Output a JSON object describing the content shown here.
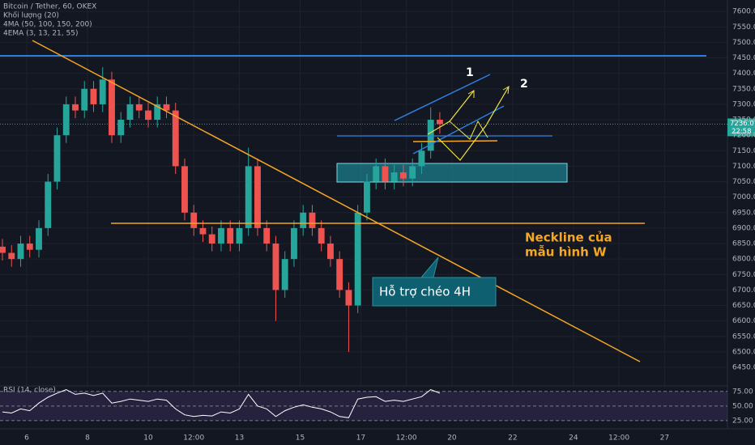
{
  "chart_data": [
    {
      "type": "candlestick",
      "title": "Bitcoin / Tether, 60, OKEX",
      "indicators": [
        "Khối lượng (20)",
        "4MA (50, 100, 150, 200)",
        "4EMA (3, 13, 21, 55)"
      ],
      "x": [
        5.2,
        5.5,
        5.8,
        6.1,
        6.4,
        6.7,
        7.0,
        7.3,
        7.6,
        7.9,
        8.2,
        8.5,
        8.8,
        9.1,
        9.4,
        9.7,
        10.0,
        10.3,
        10.6,
        10.9,
        11.2,
        11.5,
        11.8,
        12.1,
        12.4,
        12.7,
        13.0,
        13.3,
        13.6,
        13.9,
        14.2,
        14.5,
        14.8,
        15.1,
        15.4,
        15.7,
        16.0,
        16.3,
        16.6,
        16.9,
        17.2,
        17.5,
        17.8,
        18.1,
        18.4,
        18.7,
        19.0,
        19.3,
        19.6
      ],
      "open": [
        6840,
        6820,
        6800,
        6850,
        6830,
        6900,
        7050,
        7200,
        7300,
        7280,
        7350,
        7300,
        7380,
        7200,
        7250,
        7300,
        7280,
        7250,
        7300,
        7280,
        7100,
        6950,
        6900,
        6880,
        6850,
        6900,
        6850,
        6900,
        7100,
        6900,
        6850,
        6700,
        6800,
        6900,
        6950,
        6900,
        6850,
        6800,
        6700,
        6650,
        6950,
        7050,
        7100,
        7050,
        7080,
        7060,
        7100,
        7150,
        7250
      ],
      "high": [
        6865,
        6845,
        6875,
        6875,
        6925,
        7075,
        7225,
        7325,
        7325,
        7375,
        7375,
        7420,
        7405,
        7275,
        7325,
        7325,
        7305,
        7325,
        7325,
        7305,
        7125,
        6975,
        6925,
        6905,
        6925,
        6925,
        6925,
        7160,
        7125,
        6925,
        6875,
        6825,
        6925,
        6975,
        6975,
        6925,
        6875,
        6825,
        6725,
        6975,
        7075,
        7125,
        7125,
        7105,
        7105,
        7125,
        7175,
        7290,
        7275
      ],
      "low": [
        6795,
        6775,
        6775,
        6805,
        6805,
        6875,
        7025,
        7175,
        7255,
        7255,
        7275,
        7275,
        7175,
        7175,
        7225,
        7255,
        7225,
        7225,
        7255,
        7075,
        6925,
        6875,
        6855,
        6825,
        6825,
        6825,
        6825,
        6875,
        6875,
        6825,
        6600,
        6675,
        6775,
        6875,
        6875,
        6825,
        6775,
        6675,
        6500,
        6625,
        6925,
        7025,
        7025,
        7025,
        7035,
        7035,
        7075,
        7125,
        7205
      ],
      "close": [
        6820,
        6800,
        6850,
        6830,
        6900,
        7050,
        7200,
        7300,
        7280,
        7350,
        7300,
        7380,
        7200,
        7250,
        7300,
        7280,
        7250,
        7300,
        7280,
        7100,
        6950,
        6900,
        6880,
        6850,
        6900,
        6850,
        6900,
        7100,
        6900,
        6850,
        6700,
        6800,
        6900,
        6950,
        6900,
        6850,
        6800,
        6700,
        6650,
        6950,
        7050,
        7100,
        7050,
        7080,
        7060,
        7100,
        7150,
        7250,
        7236
      ],
      "up_color": "#26a69a",
      "down_color": "#ef5350",
      "xlim": [
        5.12,
        29.07
      ],
      "xticks": [
        6,
        8,
        10,
        {
          "value": 11.5,
          "label": "12:00"
        },
        13,
        15,
        17,
        {
          "value": 18.5,
          "label": "12:00"
        },
        20,
        22,
        24,
        {
          "value": 25.5,
          "label": "12:00"
        },
        27
      ],
      "ylim": [
        6390,
        7637
      ],
      "yticks": [
        {
          "value": 6450,
          "label": "6450.0"
        },
        {
          "value": 6500,
          "label": "6500.0"
        },
        {
          "value": 6550,
          "label": "6550.0"
        },
        {
          "value": 6600,
          "label": "6600.0"
        },
        {
          "value": 6650,
          "label": "6650.0"
        },
        {
          "value": 6700,
          "label": "6700.0"
        },
        {
          "value": 6750,
          "label": "6750.0"
        },
        {
          "value": 6800,
          "label": "6800.0"
        },
        {
          "value": 6850,
          "label": "6850.0"
        },
        {
          "value": 6900,
          "label": "6900.0"
        },
        {
          "value": 6950,
          "label": "6950.0"
        },
        {
          "value": 7000,
          "label": "7000.0"
        },
        {
          "value": 7050,
          "label": "7050.0"
        },
        {
          "value": 7100,
          "label": "7100.0"
        },
        {
          "value": 7150,
          "label": "7150.0"
        },
        {
          "value": 7200,
          "label": "7200.0"
        },
        {
          "value": 7250,
          "label": "7250.0"
        },
        {
          "value": 7300,
          "label": "7300.0"
        },
        {
          "value": 7350,
          "label": "7350.0"
        },
        {
          "value": 7400,
          "label": "7400.0"
        },
        {
          "value": 7450,
          "label": "7450.0"
        },
        {
          "value": 7500,
          "label": "7500.0"
        },
        {
          "value": 7550,
          "label": "7550.0"
        },
        {
          "value": 7600,
          "label": "7600.0"
        }
      ],
      "grid": true,
      "last_price": {
        "value": 7236,
        "label": "7236.0"
      },
      "countdown": "22:58",
      "annotations": {
        "wave_1": "1",
        "wave_2": "2",
        "neckline": [
          "Neckline của",
          "mẫu hình W"
        ],
        "support": "Hỗ trợ chéo 4H"
      }
    },
    {
      "type": "line",
      "title": "RSI (14, close)",
      "color": "#ffffff",
      "x": [
        5.2,
        5.5,
        5.8,
        6.1,
        6.4,
        6.7,
        7.0,
        7.3,
        7.6,
        7.9,
        8.2,
        8.5,
        8.8,
        9.1,
        9.4,
        9.7,
        10.0,
        10.3,
        10.6,
        10.9,
        11.2,
        11.5,
        11.8,
        12.1,
        12.4,
        12.7,
        13.0,
        13.3,
        13.6,
        13.9,
        14.2,
        14.5,
        14.8,
        15.1,
        15.4,
        15.7,
        16.0,
        16.3,
        16.6,
        16.9,
        17.2,
        17.5,
        17.8,
        18.1,
        18.4,
        18.7,
        19.0,
        19.3,
        19.6
      ],
      "values": [
        40,
        38,
        45,
        42,
        55,
        65,
        72,
        78,
        70,
        72,
        68,
        72,
        55,
        58,
        62,
        60,
        58,
        62,
        60,
        45,
        35,
        32,
        34,
        33,
        40,
        38,
        45,
        70,
        50,
        45,
        32,
        42,
        48,
        52,
        48,
        45,
        40,
        32,
        30,
        62,
        65,
        66,
        58,
        60,
        58,
        62,
        66,
        78,
        72
      ],
      "xlim": [
        5.12,
        29.07
      ],
      "ylim": [
        11,
        83
      ],
      "yticks": [
        {
          "value": 25,
          "label": "25.00"
        },
        {
          "value": 50,
          "label": "50.00"
        },
        {
          "value": 75,
          "label": "75.00"
        }
      ]
    }
  ]
}
